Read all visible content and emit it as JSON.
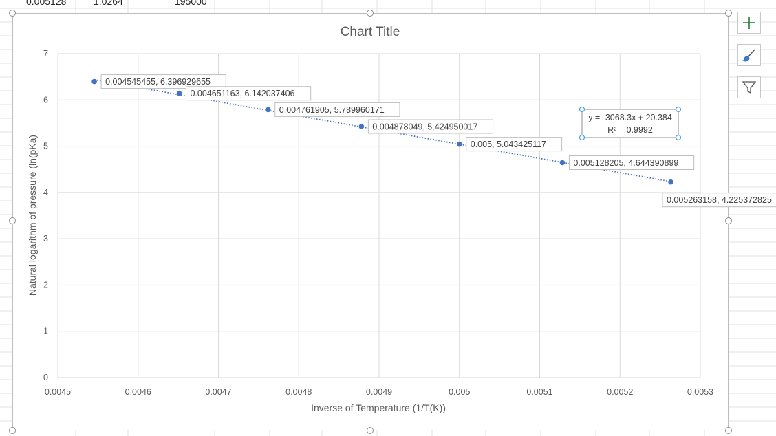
{
  "spreadsheet": {
    "partial_row": [
      "0.005128",
      "1.0264",
      "195000"
    ]
  },
  "chart_data": {
    "type": "scatter",
    "title": "Chart Title",
    "xlabel": "Inverse of Temperature (1/T(K))",
    "ylabel": "Natural logarithm of pressure (ln(pKa)",
    "xlim": [
      0.0045,
      0.0053
    ],
    "ylim": [
      0,
      7
    ],
    "x_ticks": [
      "0.0045",
      "0.0046",
      "0.0047",
      "0.0048",
      "0.0049",
      "0.005",
      "0.0051",
      "0.0052",
      "0.0053"
    ],
    "y_ticks": [
      "0",
      "1",
      "2",
      "3",
      "4",
      "5",
      "6",
      "7"
    ],
    "grid": true,
    "series": [
      {
        "x": [
          0.004545455,
          0.004651163,
          0.004761905,
          0.004878049,
          0.005,
          0.005128205,
          0.005263158
        ],
        "y": [
          6.396929655,
          6.142037406,
          5.789960171,
          5.424950017,
          5.043425117,
          4.644390899,
          4.225372825
        ],
        "data_labels": [
          "0.004545455, 6.396929655",
          "0.004651163, 6.142037406",
          "0.004761905, 5.789960171",
          "0.004878049, 5.424950017",
          "0.005, 5.043425117",
          "0.005128205, 4.644390899",
          "0.005263158, 4.225372825"
        ],
        "color": "#4472c4"
      }
    ],
    "trendline": {
      "type": "linear",
      "slope": -3068.3,
      "intercept": 20.384,
      "equation": "y = -3068.3x + 20.384",
      "r2": "R² = 0.9992",
      "style": "dotted",
      "color": "#4472c4"
    }
  },
  "chart_tools": {
    "add_element_icon": "plus-icon",
    "style_icon": "brush-icon",
    "filter_icon": "funnel-icon",
    "accent_color": "#1e7d34"
  }
}
